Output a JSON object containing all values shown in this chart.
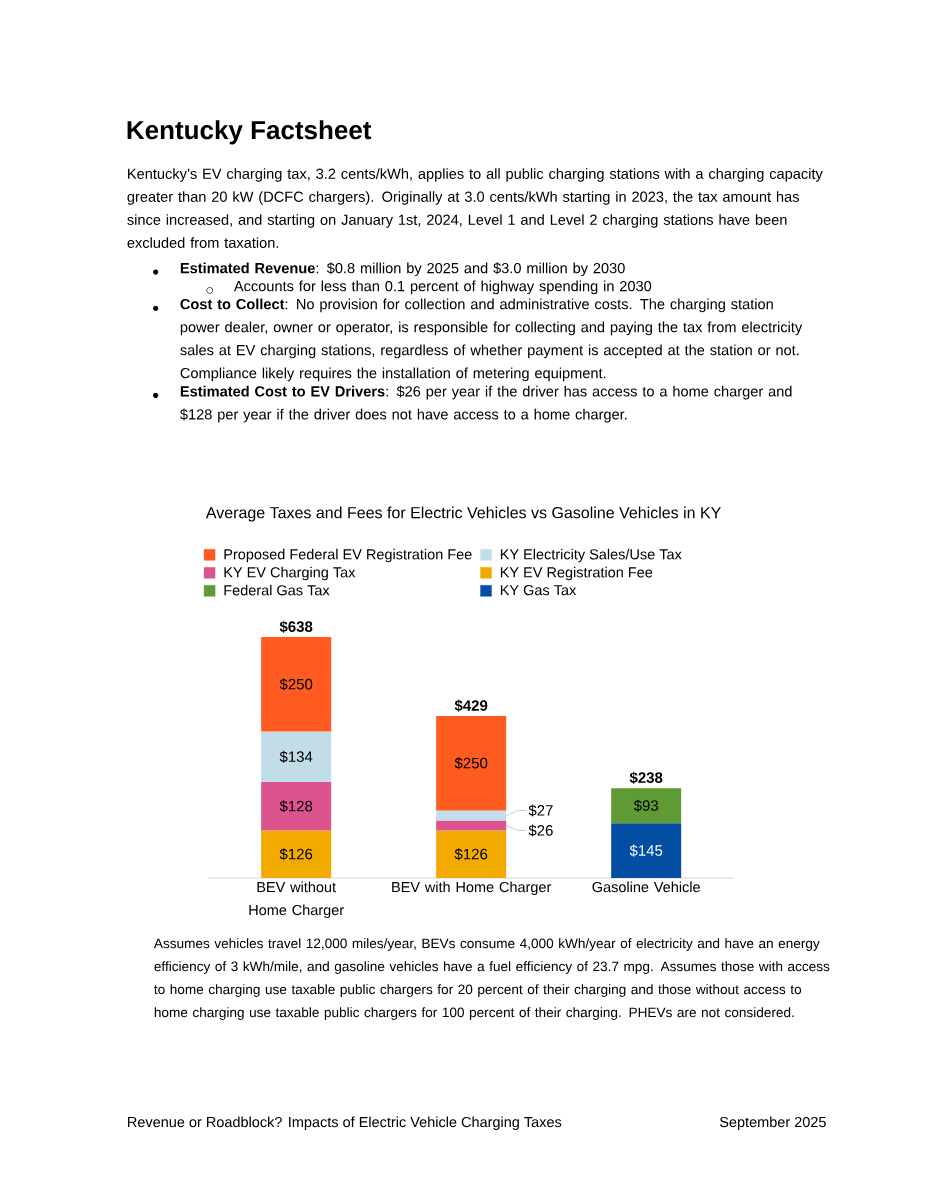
{
  "chart_data": {
    "type": "bar",
    "stacked": true,
    "title": "Kentucky Factsheet",
    "subtitle": "Average Taxes and Fees for Electric Vehicles vs Gasoline Vehicles in KY",
    "categories": [
      "BEV without Home Charger",
      "BEV with Home Charger",
      "Gasoline Vehicle"
    ],
    "series": [
      {
        "name": "KY Gas Tax",
        "color": "#034ea2",
        "values": [
          null,
          null,
          145
        ],
        "value_labels": [
          null,
          null,
          "$145"
        ]
      },
      {
        "name": "Federal Gas Tax",
        "color": "#5f9a35",
        "values": [
          null,
          null,
          93
        ],
        "value_labels": [
          null,
          null,
          "$93"
        ]
      },
      {
        "name": "KY EV Registration Fee",
        "color": "#f2a900",
        "values": [
          126,
          126,
          null
        ],
        "value_labels": [
          "$126",
          "$126",
          null
        ]
      },
      {
        "name": "KY EV Charging Tax",
        "color": "#dc548e",
        "values": [
          128,
          26,
          null
        ],
        "value_labels": [
          "$128",
          "$26",
          null
        ]
      },
      {
        "name": "KY Electricity Sales/Use Tax",
        "color": "#c0dde8",
        "values": [
          134,
          27,
          null
        ],
        "value_labels": [
          "$134",
          "$27",
          null
        ]
      },
      {
        "name": "Proposed Federal EV Registration Fee",
        "color": "#ff5a1f",
        "values": [
          250,
          250,
          null
        ],
        "value_labels": [
          "$250",
          "$250",
          null
        ]
      }
    ],
    "totals": [
      "$638",
      "$429",
      "$238"
    ],
    "legend": "top",
    "annotations": [
      "Kentucky’s EV charging tax, 3.2 cents/kWh, applies to all public charging stations with a charging capacity greater than 20 kW (DCFC chargers). Originally at 3.0 cents/kWh starting in 2023, the tax amount has since increased, and starting on January 1st, 2024, Level 1 and Level 2 charging stations have been excluded from taxation.",
      "**Estimated Revenue**: $0.8 million by 2025 and $3.0 million by 2030",
      "Accounts for less than 0.1 percent of highway spending in 2030",
      "**Cost to Collect**: No provision for collection and administrative costs. The charging station power dealer, owner or operator, is responsible for collecting and paying the tax from electricity sales at EV charging stations, regardless of whether payment is accepted at the station or not. Compliance likely requires the installation of metering equipment.",
      "**Estimated Cost to EV Drivers**: $26 per year if the driver has access to a home charger and $128 per year if the driver does not have access to a home charger.",
      "Assumes vehicles travel 12,000 miles/year, BEVs consume 4,000 kWh/year of electricity and have an energy efficiency of 3 kWh/mile, and gasoline vehicles have a fuel efficiency of 23.7 mpg. Assumes those with access to home charging use taxable public chargers for 20 percent of their charging and those without access to home charging use taxable public chargers for 100 percent of their charging. PHEVs are not considered.",
      "Revenue or Roadblock? Impacts of Electric Vehicle Charging Taxes",
      "September 2025"
    ]
  }
}
